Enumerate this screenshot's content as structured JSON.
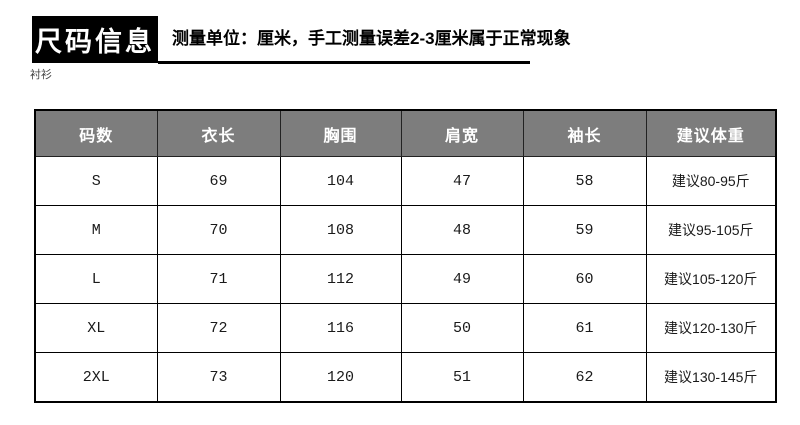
{
  "header": {
    "title_badge": "尺码信息",
    "subtitle": "测量单位：厘米，手工测量误差2-3厘米属于正常现象",
    "category_label": "衬衫"
  },
  "size_table": {
    "columns": [
      "码数",
      "衣长",
      "胸围",
      "肩宽",
      "袖长",
      "建议体重"
    ],
    "rows": [
      [
        "S",
        "69",
        "104",
        "47",
        "58",
        "建议80-95斤"
      ],
      [
        "M",
        "70",
        "108",
        "48",
        "59",
        "建议95-105斤"
      ],
      [
        "L",
        "71",
        "112",
        "49",
        "60",
        "建议105-120斤"
      ],
      [
        "XL",
        "72",
        "116",
        "50",
        "61",
        "建议120-130斤"
      ],
      [
        "2XL",
        "73",
        "120",
        "51",
        "62",
        "建议130-145斤"
      ]
    ]
  },
  "colors": {
    "banner_bg": "#000000",
    "banner_text": "#ffffff",
    "table_header_bg": "#7d7d7d",
    "table_header_text": "#ffffff",
    "body_text": "#1a1a1a",
    "border": "#000000"
  }
}
